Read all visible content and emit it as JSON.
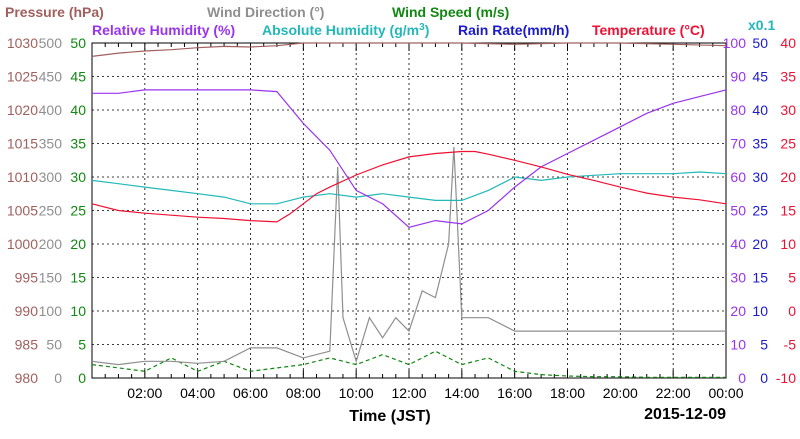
{
  "chart_data": {
    "type": "line",
    "xlabel": "Time (JST)",
    "date_label": "2015-12-09",
    "x_ticks": [
      "02:00",
      "04:00",
      "06:00",
      "08:00",
      "10:00",
      "12:00",
      "14:00",
      "16:00",
      "18:00",
      "20:00",
      "22:00",
      "00:00"
    ],
    "x_range_hours": [
      0,
      24
    ],
    "legend": [
      {
        "key": "pressure",
        "label_parts": [
          "Pressure (hPa)"
        ],
        "color": "#a0605e"
      },
      {
        "key": "wind_direction",
        "label_parts": [
          "Wind Direction (°)"
        ],
        "color": "#8f8f8f"
      },
      {
        "key": "wind_speed",
        "label_parts": [
          "Wind Speed (m/s)"
        ],
        "color": "#118811"
      },
      {
        "key": "relative_humidity",
        "label_parts": [
          "Relative Humidity (%)"
        ],
        "color": "#9933ee"
      },
      {
        "key": "absolute_humidity",
        "label_parts": [
          "Absolute Humidity (g/m",
          "3",
          ")"
        ],
        "color": "#22b8b8"
      },
      {
        "key": "rain_rate",
        "label_parts": [
          "Rain Rate(mm/h)"
        ],
        "color": "#1a1acc"
      },
      {
        "key": "temperature",
        "label_parts": [
          "Temperature (°C)"
        ],
        "color": "#ee1133"
      }
    ],
    "multiplier_label": "x0.1",
    "multiplier_color": "#22b8b8",
    "axes": {
      "pressure": {
        "ticks": [
          "980",
          "985",
          "990",
          "995",
          "1000",
          "1005",
          "1010",
          "1015",
          "1020",
          "1025",
          "1030"
        ],
        "range": [
          980,
          1030
        ],
        "color": "#a0605e"
      },
      "wind_direction": {
        "ticks": [
          "0",
          "50",
          "100",
          "150",
          "200",
          "250",
          "300",
          "350",
          "400",
          "450",
          "500"
        ],
        "range": [
          0,
          500
        ],
        "color": "#8f8f8f"
      },
      "wind_speed": {
        "ticks": [
          "0",
          "5",
          "10",
          "15",
          "20",
          "25",
          "30",
          "35",
          "40",
          "45",
          "50"
        ],
        "range": [
          0,
          50
        ],
        "color": "#118811"
      },
      "relative_humidity": {
        "ticks": [
          "0",
          "10",
          "20",
          "30",
          "40",
          "50",
          "60",
          "70",
          "80",
          "90",
          "100"
        ],
        "range": [
          0,
          100
        ],
        "color": "#9933ee"
      },
      "rain_rate": {
        "ticks": [
          "0",
          "5",
          "10",
          "15",
          "20",
          "25",
          "30",
          "35",
          "40",
          "45",
          "50"
        ],
        "range": [
          0,
          50
        ],
        "color": "#1a1acc"
      },
      "temperature": {
        "ticks": [
          "-10",
          "-5",
          "0",
          "5",
          "10",
          "15",
          "20",
          "25",
          "30",
          "35",
          "40"
        ],
        "range": [
          -10,
          40
        ],
        "color": "#ee1133"
      }
    },
    "grid": true,
    "series": [
      {
        "key": "pressure",
        "axis": "pressure",
        "points": [
          [
            0,
            1028
          ],
          [
            1,
            1028.5
          ],
          [
            2,
            1028.8
          ],
          [
            3,
            1029
          ],
          [
            4,
            1029.3
          ],
          [
            5,
            1029.5
          ],
          [
            6,
            1029.4
          ],
          [
            7,
            1029.6
          ],
          [
            8,
            1030.1
          ],
          [
            10,
            1030.5
          ],
          [
            12,
            1030.8
          ],
          [
            14,
            1030.2
          ],
          [
            16,
            1029.8
          ],
          [
            18,
            1030
          ],
          [
            20,
            1030
          ],
          [
            22,
            1029.8
          ],
          [
            24,
            1029.6
          ]
        ]
      },
      {
        "key": "temperature",
        "axis": "temperature",
        "points": [
          [
            0,
            16
          ],
          [
            1,
            15
          ],
          [
            2,
            14.6
          ],
          [
            3,
            14.3
          ],
          [
            4,
            14
          ],
          [
            5,
            13.8
          ],
          [
            6,
            13.5
          ],
          [
            7,
            13.3
          ],
          [
            7.5,
            14.5
          ],
          [
            8,
            16
          ],
          [
            8.5,
            17.5
          ],
          [
            9,
            18.5
          ],
          [
            10,
            20.3
          ],
          [
            11,
            21.8
          ],
          [
            12,
            23
          ],
          [
            13,
            23.5
          ],
          [
            14,
            23.8
          ],
          [
            14.5,
            23.8
          ],
          [
            15,
            23.4
          ],
          [
            16,
            22.5
          ],
          [
            17,
            21.5
          ],
          [
            18,
            20.4
          ],
          [
            19,
            19.5
          ],
          [
            20,
            18.5
          ],
          [
            21,
            17.6
          ],
          [
            22,
            17
          ],
          [
            23,
            16.6
          ],
          [
            24,
            16
          ]
        ]
      },
      {
        "key": "absolute_humidity",
        "axis": "relative_humidity",
        "comment_unit": "g/m3 x0.1",
        "points": [
          [
            0,
            59
          ],
          [
            1,
            58
          ],
          [
            2,
            57
          ],
          [
            3,
            56
          ],
          [
            4,
            55
          ],
          [
            5,
            54
          ],
          [
            6,
            52
          ],
          [
            7,
            52
          ],
          [
            8,
            54
          ],
          [
            9,
            55
          ],
          [
            10,
            54
          ],
          [
            11,
            55
          ],
          [
            12,
            54
          ],
          [
            13,
            53
          ],
          [
            14,
            53
          ],
          [
            15,
            56
          ],
          [
            16,
            60
          ],
          [
            17,
            59
          ],
          [
            18,
            60
          ],
          [
            19,
            60.5
          ],
          [
            20,
            61
          ],
          [
            21,
            61
          ],
          [
            22,
            61
          ],
          [
            23,
            61.5
          ],
          [
            24,
            61
          ]
        ]
      },
      {
        "key": "relative_humidity",
        "axis": "relative_humidity",
        "points": [
          [
            0,
            85
          ],
          [
            1,
            85
          ],
          [
            2,
            86
          ],
          [
            3,
            86
          ],
          [
            4,
            86
          ],
          [
            5,
            86
          ],
          [
            6,
            86
          ],
          [
            7,
            85.5
          ],
          [
            8,
            76
          ],
          [
            9,
            68
          ],
          [
            10,
            56
          ],
          [
            11,
            52
          ],
          [
            12,
            45
          ],
          [
            13,
            47
          ],
          [
            14,
            46
          ],
          [
            15,
            50
          ],
          [
            16,
            57
          ],
          [
            17,
            63
          ],
          [
            18,
            67
          ],
          [
            19,
            71
          ],
          [
            20,
            75
          ],
          [
            21,
            79
          ],
          [
            22,
            82
          ],
          [
            23,
            84
          ],
          [
            24,
            86
          ]
        ]
      },
      {
        "key": "wind_direction",
        "axis": "wind_direction",
        "points": [
          [
            0,
            25
          ],
          [
            1,
            20
          ],
          [
            2,
            25
          ],
          [
            3,
            25
          ],
          [
            4,
            22
          ],
          [
            5,
            25
          ],
          [
            6,
            45
          ],
          [
            7,
            45
          ],
          [
            8,
            30
          ],
          [
            9,
            40
          ],
          [
            9.3,
            315
          ],
          [
            9.5,
            90
          ],
          [
            10,
            25
          ],
          [
            10.5,
            90
          ],
          [
            11,
            60
          ],
          [
            11.5,
            90
          ],
          [
            12,
            70
          ],
          [
            12.5,
            130
          ],
          [
            13,
            120
          ],
          [
            13.5,
            200
          ],
          [
            13.7,
            345
          ],
          [
            14,
            90
          ],
          [
            15,
            90
          ],
          [
            16,
            70
          ],
          [
            17,
            70
          ],
          [
            18,
            70
          ],
          [
            19,
            70
          ],
          [
            20,
            70
          ],
          [
            21,
            70
          ],
          [
            22,
            70
          ],
          [
            23,
            70
          ],
          [
            24,
            70
          ]
        ]
      },
      {
        "key": "wind_speed",
        "axis": "wind_speed",
        "style": "dashed",
        "points": [
          [
            0,
            2
          ],
          [
            1,
            1.5
          ],
          [
            2,
            1
          ],
          [
            3,
            3
          ],
          [
            4,
            1
          ],
          [
            5,
            2.5
          ],
          [
            6,
            1
          ],
          [
            7,
            1.5
          ],
          [
            8,
            2
          ],
          [
            9,
            3
          ],
          [
            10,
            2
          ],
          [
            11,
            3.5
          ],
          [
            12,
            2
          ],
          [
            13,
            4
          ],
          [
            14,
            2
          ],
          [
            15,
            3
          ],
          [
            16,
            1
          ],
          [
            17,
            0.5
          ],
          [
            18,
            0.3
          ],
          [
            19,
            0.2
          ],
          [
            20,
            0.2
          ],
          [
            21,
            0.1
          ],
          [
            22,
            0.1
          ],
          [
            23,
            0.1
          ],
          [
            24,
            0.1
          ]
        ]
      }
    ]
  }
}
